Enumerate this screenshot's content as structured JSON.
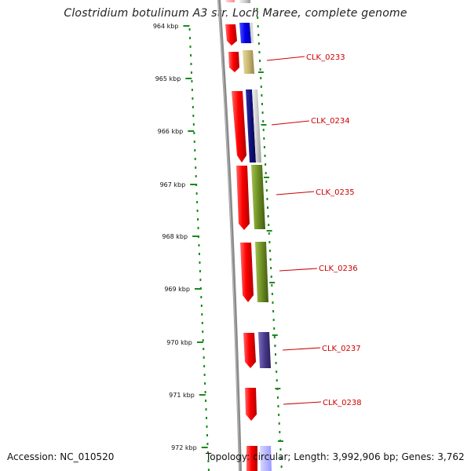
{
  "title": "Clostridium botulinum A3 str. Loch Maree, complete genome",
  "footer": {
    "accession": "Accession: NC_010520",
    "topology": "Topology: circular; Length: 3,992,906 bp; Genes: 3,762"
  },
  "colors": {
    "backbone": "#8a8a8a",
    "tick": "#1a8a1a",
    "forward_strand": "#ff0000",
    "label": "#cc0000"
  },
  "ticks": [
    {
      "label": "964 kbp"
    },
    {
      "label": "965 kbp"
    },
    {
      "label": "966 kbp"
    },
    {
      "label": "967 kbp"
    },
    {
      "label": "968 kbp"
    },
    {
      "label": "969 kbp"
    },
    {
      "label": "970 kbp"
    },
    {
      "label": "971 kbp"
    },
    {
      "label": "972 kbp"
    }
  ],
  "genes": [
    {
      "locus": "CLK_0233",
      "inner_color": "#ff0000",
      "outer_color": "#c8b870"
    },
    {
      "locus": "CLK_0234",
      "inner_color": "#ff0000",
      "outer_color": "#1a1a8c"
    },
    {
      "locus": "CLK_0235",
      "inner_color": "#ff0000",
      "outer_color": "#6b8e23"
    },
    {
      "locus": "CLK_0236",
      "inner_color": "#ff0000",
      "outer_color": "#6b8e23"
    },
    {
      "locus": "CLK_0237",
      "inner_color": "#ff0000",
      "outer_color": "#4a3a8c"
    },
    {
      "locus": "CLK_0238",
      "inner_color": "#ff0000",
      "outer_color": null
    }
  ]
}
